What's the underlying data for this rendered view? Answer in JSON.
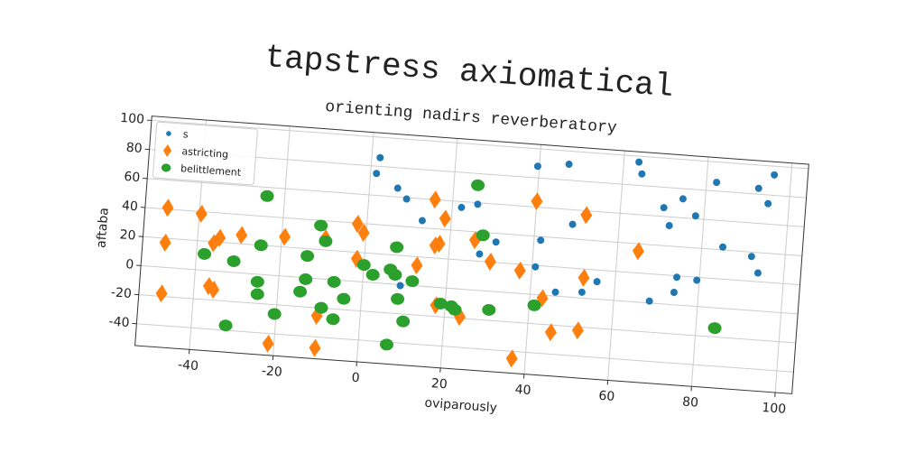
{
  "chart_data": {
    "type": "scatter",
    "title": "tapstress axiomatical",
    "subtitle": "orienting nadirs reverberatory",
    "x_label": "oviparously",
    "y_label": "aftaba",
    "xlim": [
      -53,
      104
    ],
    "ylim": [
      -55,
      103
    ],
    "xticks": [
      -40,
      -20,
      0,
      20,
      40,
      60,
      80,
      100
    ],
    "yticks": [
      -40,
      -20,
      0,
      20,
      40,
      60,
      80,
      100
    ],
    "grid": true,
    "legend": "upper left",
    "series": [
      {
        "name": "s",
        "color": "#1f77b4",
        "marker": "circle",
        "x": [
          2,
          1.4,
          6.7,
          9,
          13.1,
          22.2,
          26,
          27.3,
          31,
          39.6,
          41.6,
          40.8,
          47,
          48.9,
          52.3,
          55.7,
          63.6,
          64.5,
          70.3,
          71.9,
          74.7,
          78,
          74.6,
          74.2,
          68.5,
          79.4,
          85,
          82.4,
          92,
          93.8,
          92.5,
          96,
          95,
          9,
          46
        ],
        "values": [
          86,
          75,
          66,
          59,
          45,
          56,
          59,
          25,
          34,
          88,
          37.5,
          19,
          91,
          50,
          4,
          12,
          96,
          88,
          66,
          54,
          73,
          62,
          19,
          8.5,
          1.3,
          18,
          42,
          86,
          37,
          26,
          84,
          94,
          74,
          -0.6,
          2.7
        ]
      },
      {
        "name": "astricting",
        "color": "#ff7f0e",
        "marker": "diamond",
        "x": [
          -47.6,
          -47.6,
          -47.6,
          -39.5,
          -36.1,
          -34.7,
          -36.5,
          -35.3,
          -29.6,
          -19.3,
          -9.6,
          -21.4,
          -10.2,
          -10.3,
          -2.2,
          -0.6,
          -1.8,
          12.6,
          15.8,
          16.6,
          18.5,
          17.6,
          17.8,
          23.7,
          26,
          30,
          36.8,
          40,
          37.2,
          43,
          45.6,
          52,
          52.5,
          52,
          65
        ],
        "values": [
          41,
          17,
          -18,
          38.6,
          19,
          23,
          -10.6,
          -12.8,
          26,
          27,
          28,
          -47,
          -47.6,
          -25.5,
          39.5,
          33.7,
          15.6,
          14,
          60,
          28.6,
          47.5,
          30,
          -12.3,
          -19,
          34.3,
          20.3,
          -45,
          64,
          15.7,
          -2.1,
          -25,
          -22.4,
          14,
          57,
          35
        ]
      },
      {
        "name": "belittlement",
        "color": "#2ca02c",
        "marker": "ellipse",
        "x": [
          -24.2,
          -38.1,
          -31,
          -24.8,
          -25,
          -24.8,
          -20.4,
          -14.7,
          -13.6,
          -13.6,
          -10.9,
          -9.5,
          -6.8,
          -4.2,
          -9.4,
          -6.4,
          -31.8,
          7.5,
          0,
          2.3,
          6.4,
          7.6,
          8.6,
          11.8,
          10.3,
          6.8,
          18.9,
          21.5,
          22.4,
          25.7,
          27.8,
          30.5,
          41.2,
          84.5
        ],
        "values": [
          54,
          11.2,
          7.7,
          20,
          -5.2,
          -13.7,
          -26.4,
          -9.8,
          -1,
          15,
          36.5,
          26,
          -1.4,
          -12.5,
          -19.8,
          -27,
          -36.7,
          25.5,
          11.7,
          5.4,
          9.9,
          6.5,
          -9.9,
          3,
          -25,
          -41.7,
          -10.9,
          -12.2,
          -14.4,
          72,
          38,
          -12.8,
          -7.4,
          -13.9
        ]
      }
    ]
  }
}
